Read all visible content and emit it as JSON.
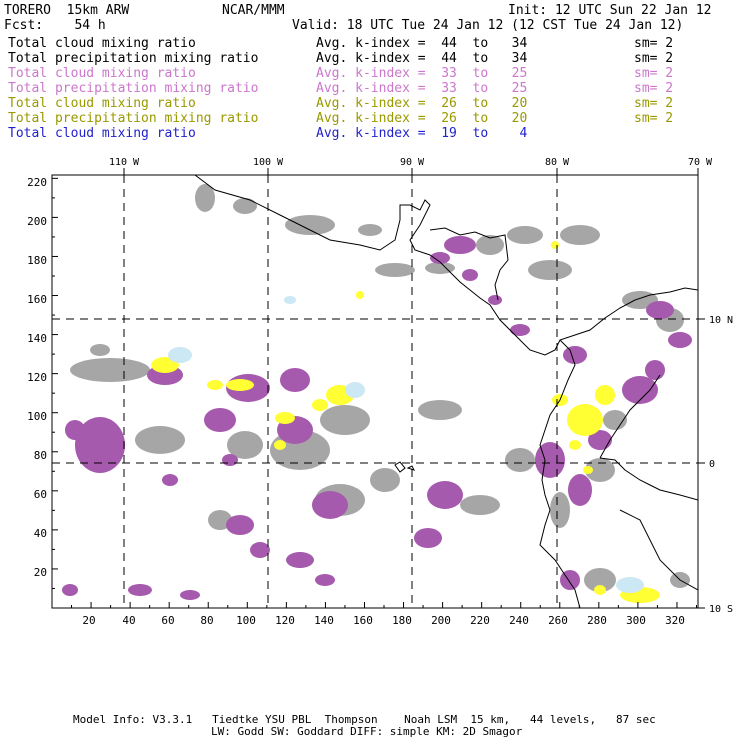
{
  "header": {
    "model": "TORERO  15km ARW",
    "org": "NCAR/MMM",
    "init": "Init: 12 UTC Sun 22 Jan 12",
    "fcst": "Fcst:    54 h",
    "valid": "Valid: 18 UTC Tue 24 Jan 12 (12 CST Tue 24 Jan 12)"
  },
  "legend": [
    {
      "field": "Total cloud mixing ratio",
      "kindex": "Avg. k-index =  44  to   34",
      "sm": "sm= 2",
      "color": "#000000"
    },
    {
      "field": "Total precipitation mixing ratio",
      "kindex": "Avg. k-index =  44  to   34",
      "sm": "sm= 2",
      "color": "#000000"
    },
    {
      "field": "Total cloud mixing ratio",
      "kindex": "Avg. k-index =  33  to   25",
      "sm": "sm= 2",
      "color": "#cc77cc"
    },
    {
      "field": "Total precipitation mixing ratio",
      "kindex": "Avg. k-index =  33  to   25",
      "sm": "sm= 2",
      "color": "#cc77cc"
    },
    {
      "field": "Total cloud mixing ratio",
      "kindex": "Avg. k-index =  26  to   20",
      "sm": "sm= 2",
      "color": "#999900"
    },
    {
      "field": "Total precipitation mixing ratio",
      "kindex": "Avg. k-index =  26  to   20",
      "sm": "sm= 2",
      "color": "#999900"
    },
    {
      "field": "Total cloud mixing ratio",
      "kindex": "Avg. k-index =  19  to    4",
      "sm": "",
      "color": "#2222cc"
    }
  ],
  "top_axis": [
    "110 W",
    "100 W",
    "90 W",
    "80 W",
    "70 W"
  ],
  "right_axis": [
    "10 N",
    "0",
    "10 S"
  ],
  "left_axis": [
    "220",
    "200",
    "180",
    "160",
    "140",
    "120",
    "100",
    "80",
    "60",
    "40",
    "20"
  ],
  "bottom_axis": [
    "20",
    "40",
    "60",
    "80",
    "100",
    "120",
    "140",
    "160",
    "180",
    "200",
    "220",
    "240",
    "260",
    "280",
    "300",
    "320"
  ],
  "footer": {
    "line1": "Model Info: V3.3.1   Tiedtke YSU PBL  Thompson    Noah LSM  15 km,   44 levels,   87 sec",
    "line2": "LW: Godd SW: Goddard DIFF: simple KM: 2D Smagor"
  },
  "colors": {
    "gray": "#a6a6a6",
    "purple": "#a65aad",
    "yellow": "#ffff33",
    "lightblue": "#cce8f4"
  }
}
